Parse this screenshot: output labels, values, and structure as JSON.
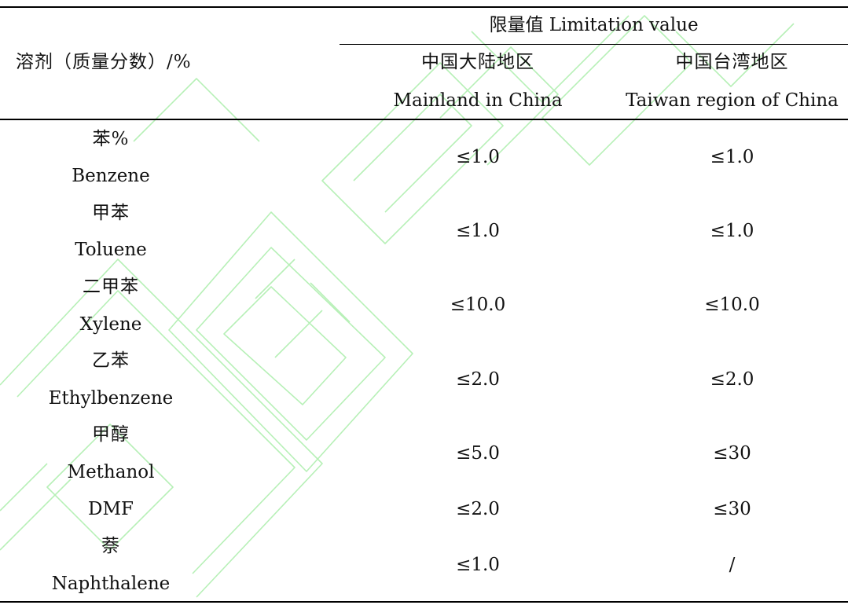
{
  "table": {
    "header": {
      "solvent": "溶剂（质量分数）/%",
      "limit_group": "限量值 Limitation value",
      "mainland_zh": "中国大陆地区",
      "mainland_en": "Mainland in China",
      "taiwan_zh": "中国台湾地区",
      "taiwan_en": "Taiwan region of China"
    },
    "rows": [
      {
        "zh": "苯%",
        "en": "Benzene",
        "mainland": "≤1.0",
        "taiwan": "≤1.0"
      },
      {
        "zh": "甲苯",
        "en": "Toluene",
        "mainland": "≤1.0",
        "taiwan": "≤1.0"
      },
      {
        "zh": "二甲苯",
        "en": "Xylene",
        "mainland": "≤10.0",
        "taiwan": "≤10.0"
      },
      {
        "zh": "乙苯",
        "en": "Ethylbenzene",
        "mainland": "≤2.0",
        "taiwan": "≤2.0"
      },
      {
        "zh": "甲醇",
        "en": "Methanol",
        "mainland": "≤5.0",
        "taiwan": "≤30"
      },
      {
        "zh": "",
        "en": "DMF",
        "mainland": "≤2.0",
        "taiwan": "≤30"
      },
      {
        "zh": "萘",
        "en": "Naphthalene",
        "mainland": "≤1.0",
        "taiwan": "/"
      }
    ]
  }
}
